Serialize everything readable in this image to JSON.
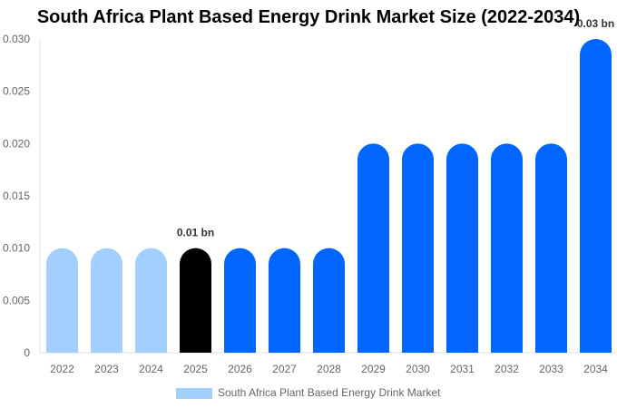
{
  "chart_data": {
    "type": "bar",
    "title": "South Africa Plant Based Energy Drink Market Size (2022-2034)",
    "categories": [
      "2022",
      "2023",
      "2024",
      "2025",
      "2026",
      "2027",
      "2028",
      "2029",
      "2030",
      "2031",
      "2032",
      "2033",
      "2034"
    ],
    "series": [
      {
        "name": "South Africa Plant Based Energy Drink Market",
        "values": [
          0.01,
          0.01,
          0.01,
          0.01,
          0.01,
          0.01,
          0.01,
          0.02,
          0.02,
          0.02,
          0.02,
          0.02,
          0.03
        ]
      }
    ],
    "bar_colors": [
      "#a3cfff",
      "#a3cfff",
      "#a3cfff",
      "#000000",
      "#0066ff",
      "#0066ff",
      "#0066ff",
      "#0066ff",
      "#0066ff",
      "#0066ff",
      "#0066ff",
      "#0066ff",
      "#0066ff"
    ],
    "legend_color": "#a3cfff",
    "data_labels": [
      {
        "category": "2025",
        "text": "0.01 bn"
      },
      {
        "category": "2034",
        "text": "0.03 bn"
      }
    ],
    "yticks": [
      "0",
      "0.005",
      "0.010",
      "0.015",
      "0.020",
      "0.025",
      "0.030"
    ],
    "ylim": [
      0,
      0.03
    ],
    "xlabel": "",
    "ylabel": "",
    "grid": false,
    "legend_position": "bottom"
  }
}
